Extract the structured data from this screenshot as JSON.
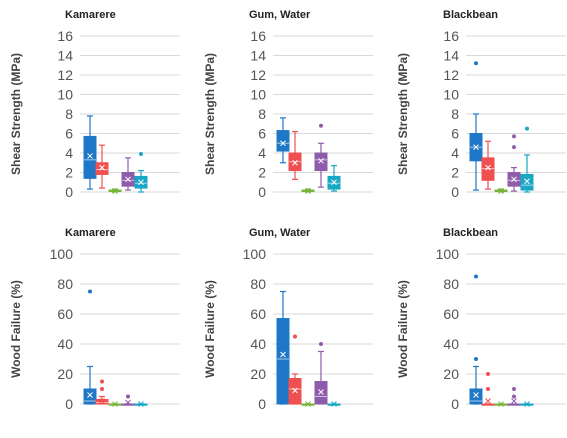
{
  "colors": {
    "grid": "#d9d9d9",
    "series": [
      "#1f77c8",
      "#ef4f4f",
      "#79b43b",
      "#8f5cab",
      "#18a8c6"
    ]
  },
  "chart_data": [
    {
      "type": "box",
      "title": "Kamarere",
      "ylabel": "Shear Strength (MPa)",
      "ylim": [
        0,
        16
      ],
      "yticks": [
        0,
        2,
        4,
        6,
        8,
        10,
        12,
        14,
        16
      ],
      "boxes": [
        {
          "min": 0.3,
          "q1": 1.4,
          "median": 3.3,
          "mean": 3.7,
          "q3": 5.7,
          "max": 7.8,
          "outliers": []
        },
        {
          "min": 0.4,
          "q1": 1.8,
          "median": 2.3,
          "mean": 2.5,
          "q3": 3.0,
          "max": 4.8,
          "outliers": []
        },
        {
          "min": 0.0,
          "q1": 0.05,
          "median": 0.1,
          "mean": 0.1,
          "q3": 0.2,
          "max": 0.3,
          "outliers": []
        },
        {
          "min": 0.2,
          "q1": 0.6,
          "median": 1.2,
          "mean": 1.3,
          "q3": 2.0,
          "max": 3.5,
          "outliers": []
        },
        {
          "min": 0.0,
          "q1": 0.4,
          "median": 0.9,
          "mean": 1.0,
          "q3": 1.6,
          "max": 2.2,
          "outliers": [
            3.9
          ]
        }
      ]
    },
    {
      "type": "box",
      "title": "Gum, Water",
      "ylabel": "Shear Strength (MPa)",
      "ylim": [
        0,
        16
      ],
      "yticks": [
        0,
        2,
        4,
        6,
        8,
        10,
        12,
        14,
        16
      ],
      "boxes": [
        {
          "min": 3.0,
          "q1": 4.2,
          "median": 5.0,
          "mean": 5.0,
          "q3": 6.3,
          "max": 7.6,
          "outliers": []
        },
        {
          "min": 1.3,
          "q1": 2.2,
          "median": 3.1,
          "mean": 3.0,
          "q3": 4.0,
          "max": 6.2,
          "outliers": []
        },
        {
          "min": 0.0,
          "q1": 0.05,
          "median": 0.1,
          "mean": 0.1,
          "q3": 0.2,
          "max": 0.3,
          "outliers": []
        },
        {
          "min": 0.5,
          "q1": 2.2,
          "median": 3.3,
          "mean": 3.2,
          "q3": 4.0,
          "max": 5.0,
          "outliers": [
            6.8
          ]
        },
        {
          "min": 0.1,
          "q1": 0.3,
          "median": 0.9,
          "mean": 1.0,
          "q3": 1.6,
          "max": 2.7,
          "outliers": []
        }
      ]
    },
    {
      "type": "box",
      "title": "Blackbean",
      "ylabel": "Shear Strength (MPa)",
      "ylim": [
        0,
        16
      ],
      "yticks": [
        0,
        2,
        4,
        6,
        8,
        10,
        12,
        14,
        16
      ],
      "boxes": [
        {
          "min": 0.2,
          "q1": 3.2,
          "median": 4.6,
          "mean": 4.6,
          "q3": 6.0,
          "max": 8.0,
          "outliers": [
            13.2
          ]
        },
        {
          "min": 0.3,
          "q1": 1.2,
          "median": 2.4,
          "mean": 2.5,
          "q3": 3.5,
          "max": 5.2,
          "outliers": []
        },
        {
          "min": 0.0,
          "q1": 0.05,
          "median": 0.1,
          "mean": 0.1,
          "q3": 0.2,
          "max": 0.3,
          "outliers": []
        },
        {
          "min": 0.1,
          "q1": 0.6,
          "median": 1.2,
          "mean": 1.3,
          "q3": 2.0,
          "max": 2.5,
          "outliers": [
            4.6,
            5.7
          ]
        },
        {
          "min": 0.0,
          "q1": 0.2,
          "median": 0.7,
          "mean": 1.1,
          "q3": 1.8,
          "max": 3.8,
          "outliers": [
            6.5
          ]
        }
      ]
    },
    {
      "type": "box",
      "title": "Kamarere",
      "ylabel": "Wood Failure (%)",
      "ylim": [
        0,
        100
      ],
      "yticks": [
        0,
        20,
        40,
        60,
        80,
        100
      ],
      "boxes": [
        {
          "min": 0,
          "q1": 0,
          "median": 2,
          "mean": 6,
          "q3": 10,
          "max": 25,
          "outliers": [
            75
          ]
        },
        {
          "min": 0,
          "q1": 0,
          "median": 1,
          "mean": 2,
          "q3": 3,
          "max": 5,
          "outliers": [
            10,
            15
          ]
        },
        {
          "min": 0,
          "q1": 0,
          "median": 0,
          "mean": 0,
          "q3": 0,
          "max": 0,
          "outliers": []
        },
        {
          "min": 0,
          "q1": 0,
          "median": 0,
          "mean": 1,
          "q3": 0,
          "max": 0,
          "outliers": [
            5
          ]
        },
        {
          "min": 0,
          "q1": 0,
          "median": 0,
          "mean": 0,
          "q3": 0,
          "max": 0,
          "outliers": []
        }
      ]
    },
    {
      "type": "box",
      "title": "Gum, Water",
      "ylabel": "Wood Failure (%)",
      "ylim": [
        0,
        100
      ],
      "yticks": [
        0,
        20,
        40,
        60,
        80,
        100
      ],
      "boxes": [
        {
          "min": 0,
          "q1": 0,
          "median": 30,
          "mean": 33,
          "q3": 57,
          "max": 75,
          "outliers": []
        },
        {
          "min": 0,
          "q1": 0,
          "median": 10,
          "mean": 9,
          "q3": 17,
          "max": 20,
          "outliers": [
            45
          ]
        },
        {
          "min": 0,
          "q1": 0,
          "median": 0,
          "mean": 0,
          "q3": 0,
          "max": 0,
          "outliers": []
        },
        {
          "min": 0,
          "q1": 0,
          "median": 5,
          "mean": 8,
          "q3": 15,
          "max": 35,
          "outliers": [
            40
          ]
        },
        {
          "min": 0,
          "q1": 0,
          "median": 0,
          "mean": 0,
          "q3": 0,
          "max": 0,
          "outliers": []
        }
      ]
    },
    {
      "type": "box",
      "title": "Blackbean",
      "ylabel": "Wood Failure (%)",
      "ylim": [
        0,
        100
      ],
      "yticks": [
        0,
        20,
        40,
        60,
        80,
        100
      ],
      "boxes": [
        {
          "min": 0,
          "q1": 0,
          "median": 2,
          "mean": 6,
          "q3": 10,
          "max": 25,
          "outliers": [
            30,
            85
          ]
        },
        {
          "min": 0,
          "q1": 0,
          "median": 0,
          "mean": 2,
          "q3": 0,
          "max": 0,
          "outliers": [
            10,
            20
          ]
        },
        {
          "min": 0,
          "q1": 0,
          "median": 0,
          "mean": 0,
          "q3": 0,
          "max": 0,
          "outliers": []
        },
        {
          "min": 0,
          "q1": 0,
          "median": 0,
          "mean": 2,
          "q3": 0,
          "max": 0,
          "outliers": [
            5,
            10
          ]
        },
        {
          "min": 0,
          "q1": 0,
          "median": 0,
          "mean": 0,
          "q3": 0,
          "max": 0,
          "outliers": []
        }
      ]
    }
  ]
}
